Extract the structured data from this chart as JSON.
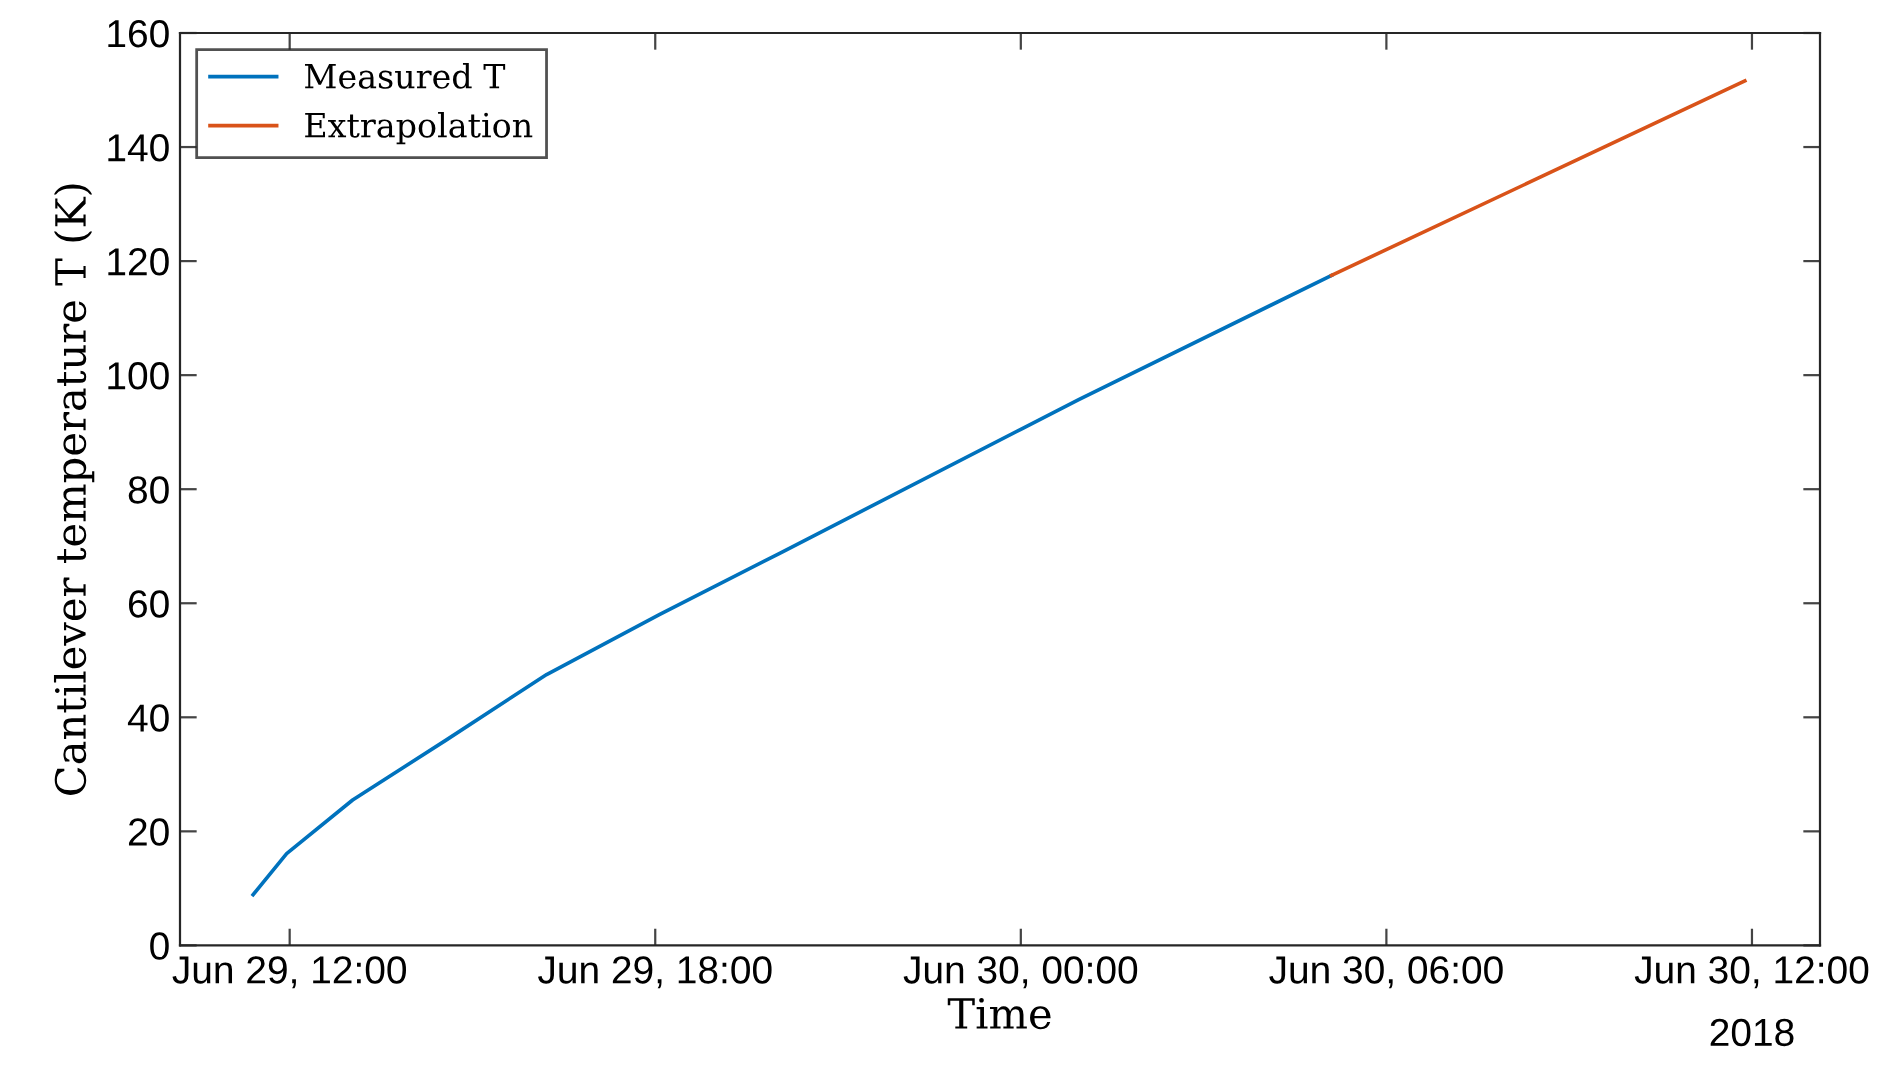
{
  "chart_data": {
    "type": "line",
    "xlabel": "Time",
    "ylabel": "Cantilever temperature T (K)",
    "xlim": [
      "2018-06-29T10:12",
      "2018-06-30T13:07"
    ],
    "xticks": [
      {
        "value": "2018-06-29T12:00",
        "label": "Jun 29, 12:00"
      },
      {
        "value": "2018-06-29T18:00",
        "label": "Jun 29, 18:00"
      },
      {
        "value": "2018-06-30T00:00",
        "label": "Jun 30, 00:00"
      },
      {
        "value": "2018-06-30T06:00",
        "label": "Jun 30, 06:00"
      },
      {
        "value": "2018-06-30T12:00",
        "label": "Jun 30, 12:00"
      }
    ],
    "ylim": [
      0,
      160
    ],
    "yticks": [
      0,
      20,
      40,
      60,
      80,
      100,
      120,
      140,
      160
    ],
    "annotations": [
      "2018"
    ],
    "grid": false,
    "legend": "top left",
    "line_style": "solid",
    "marker": "none",
    "series": [
      {
        "name": "Measured T",
        "color": "#0072bd",
        "x": [
          "2018-06-29T11:24",
          "2018-06-29T11:57",
          "2018-06-29T13:02",
          "2018-06-29T14:34",
          "2018-06-29T16:13",
          "2018-06-29T18:04",
          "2018-06-29T20:03",
          "2018-06-30T00:00",
          "2018-06-30T00:57",
          "2018-06-30T05:06"
        ],
        "values": [
          8.9,
          16.1,
          25.5,
          36.0,
          47.5,
          58.0,
          68.8,
          90.5,
          95.7,
          117.5
        ]
      },
      {
        "name": "Extrapolation",
        "color": "#d95319",
        "x": [
          "2018-06-30T05:06",
          "2018-06-30T11:53"
        ],
        "values": [
          117.5,
          151.6
        ]
      }
    ]
  }
}
